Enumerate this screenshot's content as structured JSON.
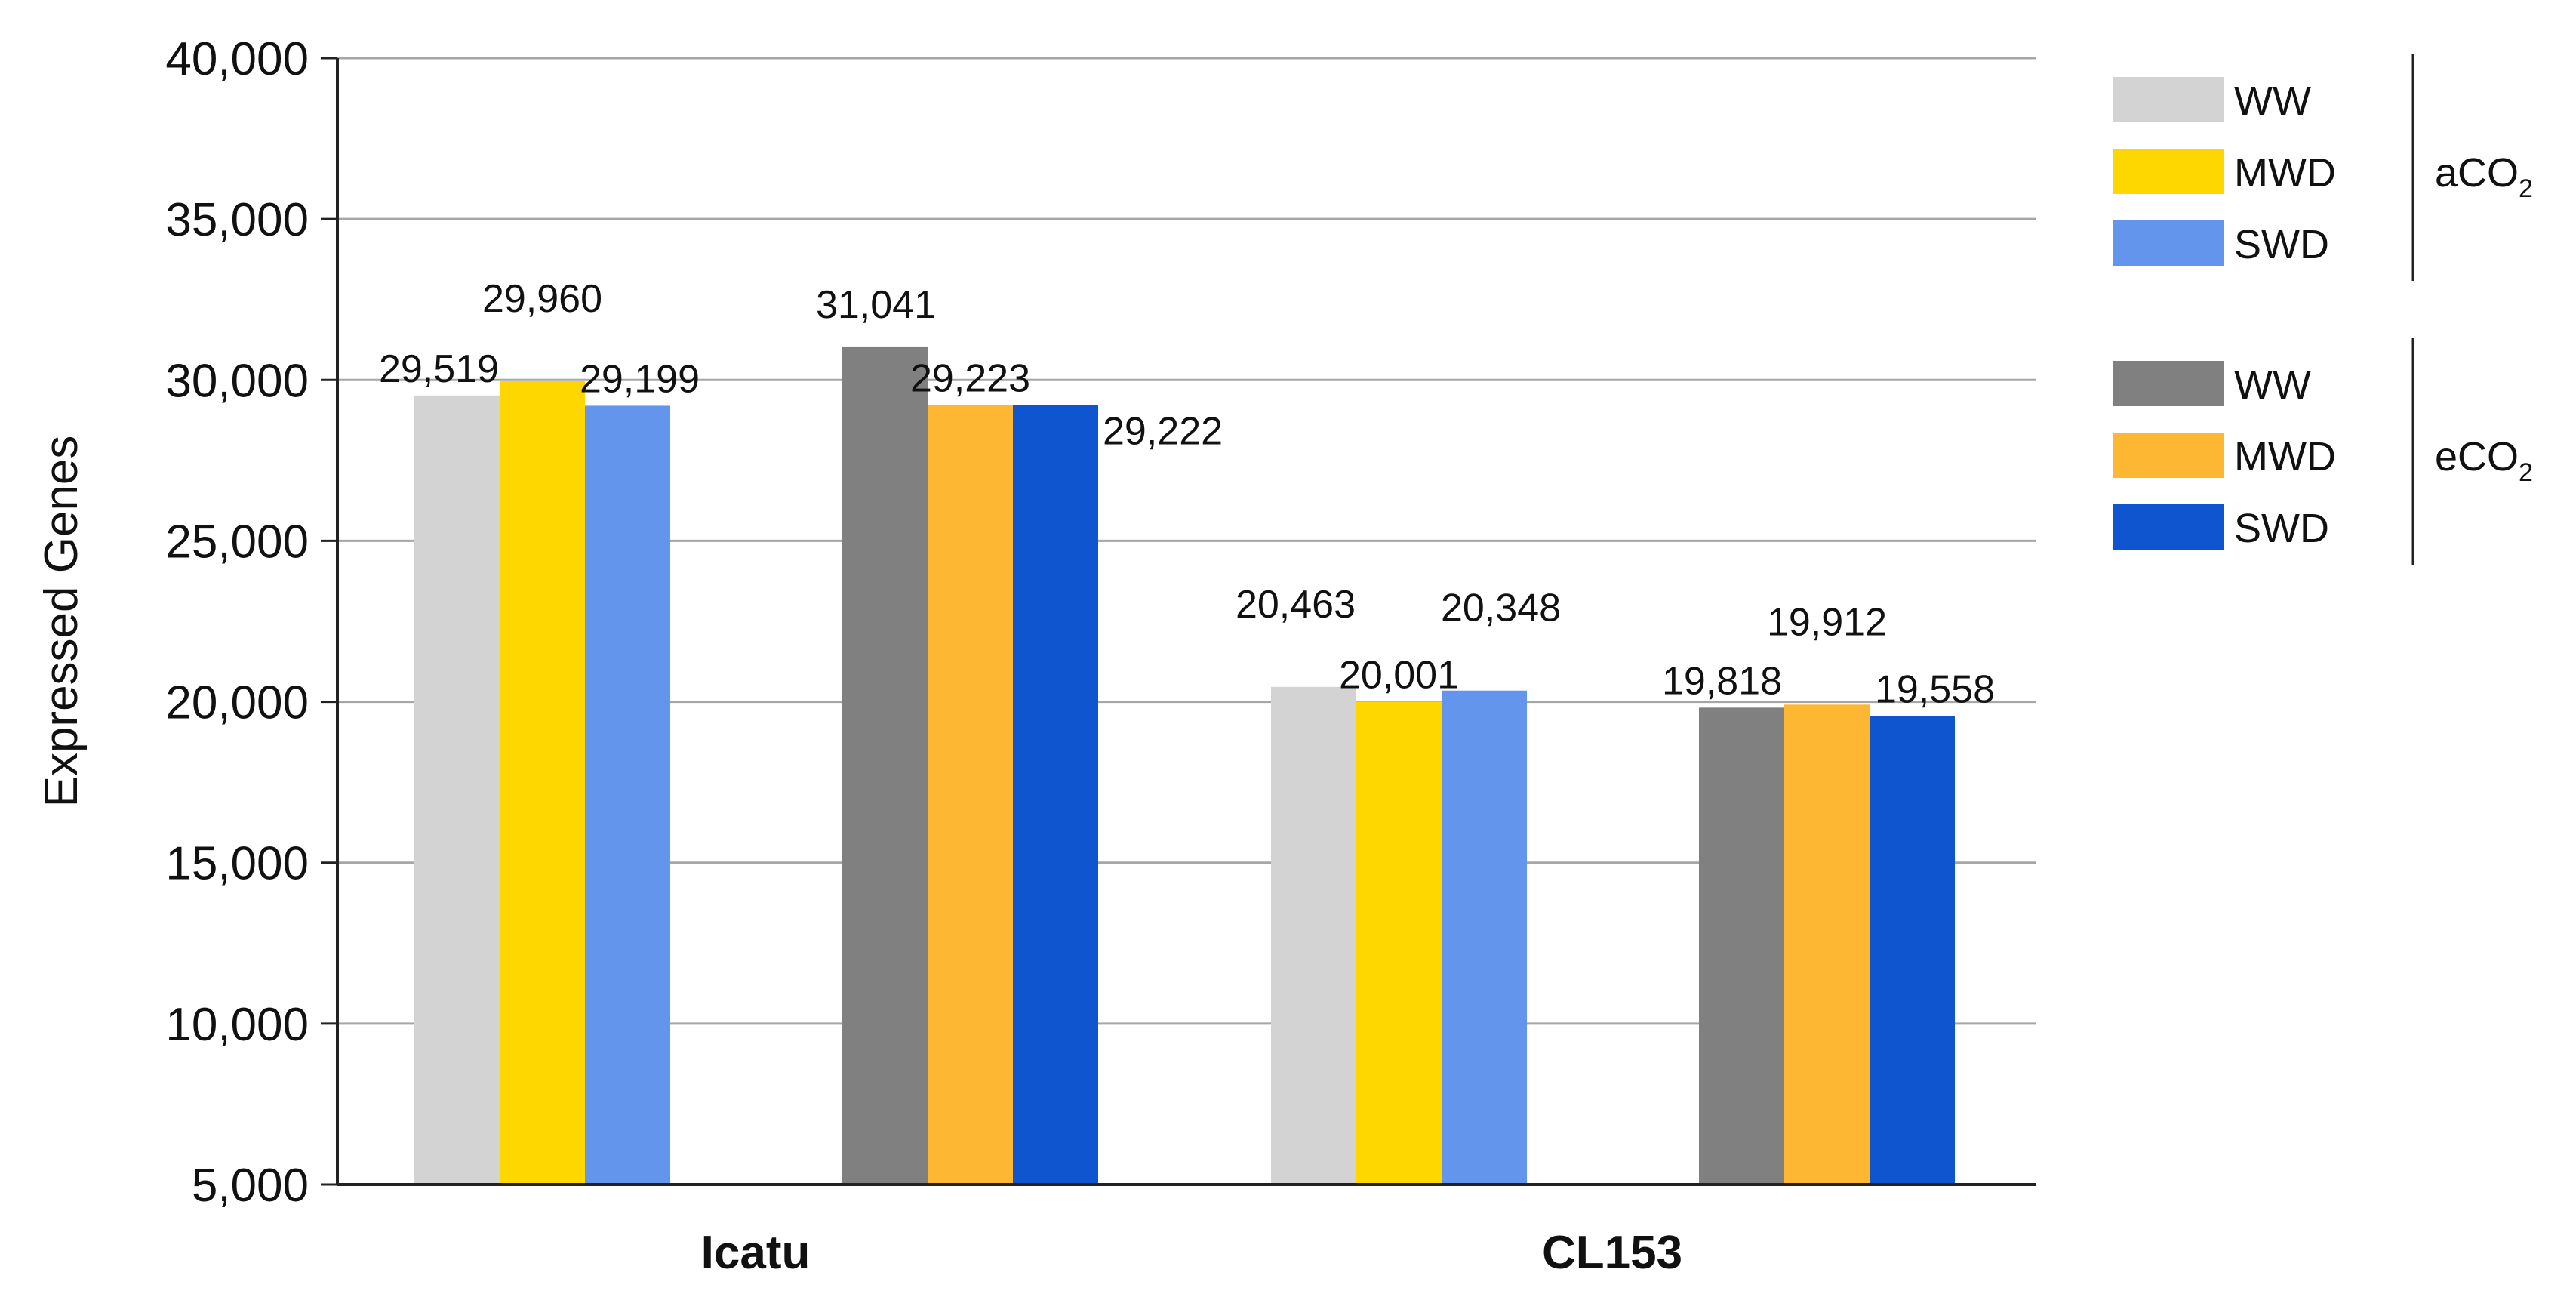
{
  "chart_data": {
    "type": "bar",
    "ylabel": "Expressed Genes",
    "ylim": [
      5000,
      40000
    ],
    "yticks": [
      5000,
      10000,
      15000,
      20000,
      25000,
      30000,
      35000,
      40000
    ],
    "ytick_labels": [
      "5,000",
      "10,000",
      "15,000",
      "20,000",
      "25,000",
      "30,000",
      "35,000",
      "40,000"
    ],
    "grid": true,
    "legend_position": "right",
    "groups": [
      {
        "label": "Icatu",
        "clusters": [
          {
            "co2": "aCO2",
            "bars": [
              {
                "treatment": "WW",
                "value": 29519,
                "label": "29,519"
              },
              {
                "treatment": "MWD",
                "value": 29960,
                "label": "29,960"
              },
              {
                "treatment": "SWD",
                "value": 29199,
                "label": "29,199"
              }
            ]
          },
          {
            "co2": "eCO2",
            "bars": [
              {
                "treatment": "WW",
                "value": 31041,
                "label": "31,041"
              },
              {
                "treatment": "MWD",
                "value": 29223,
                "label": "29,223"
              },
              {
                "treatment": "SWD",
                "value": 29222,
                "label": "29,222"
              }
            ]
          }
        ]
      },
      {
        "label": "CL153",
        "clusters": [
          {
            "co2": "aCO2",
            "bars": [
              {
                "treatment": "WW",
                "value": 20463,
                "label": "20,463"
              },
              {
                "treatment": "MWD",
                "value": 20001,
                "label": "20,001"
              },
              {
                "treatment": "SWD",
                "value": 20348,
                "label": "20,348"
              }
            ]
          },
          {
            "co2": "eCO2",
            "bars": [
              {
                "treatment": "WW",
                "value": 19818,
                "label": "19,818"
              },
              {
                "treatment": "MWD",
                "value": 19912,
                "label": "19,912"
              },
              {
                "treatment": "SWD",
                "value": 19558,
                "label": "19,558"
              }
            ]
          }
        ]
      }
    ],
    "legend": [
      {
        "group": "aCO2",
        "group_main": "aCO",
        "group_sub": "2",
        "entries": [
          {
            "label": "WW",
            "color": "#d3d3d3"
          },
          {
            "label": "MWD",
            "color": "#ffd700"
          },
          {
            "label": "SWD",
            "color": "#6495ed"
          }
        ]
      },
      {
        "group": "eCO2",
        "group_main": "eCO",
        "group_sub": "2",
        "entries": [
          {
            "label": "WW",
            "color": "#808080"
          },
          {
            "label": "MWD",
            "color": "#fdb732"
          },
          {
            "label": "SWD",
            "color": "#0f55cf"
          }
        ]
      }
    ]
  }
}
